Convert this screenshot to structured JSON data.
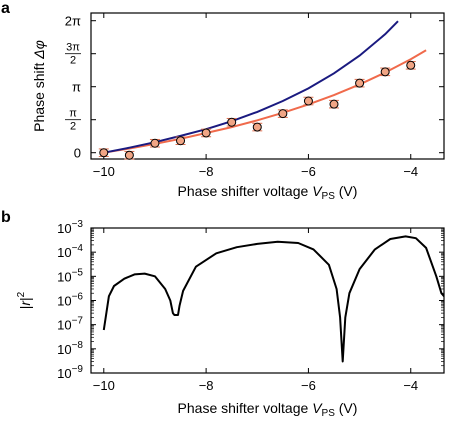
{
  "chart_data": [
    {
      "panel": "a",
      "type": "scatter",
      "xlabel": "Phase shifter voltage V_PS (V)",
      "ylabel": "Phase shift Δφ",
      "xlim": [
        -10.25,
        -3.35
      ],
      "ylim": [
        -0.3,
        6.65
      ],
      "x_ticks": [
        -10,
        -8,
        -6,
        -4
      ],
      "x_tick_labels": [
        "−10",
        "−8",
        "−6",
        "−4"
      ],
      "y_ticks": [
        0,
        1.5708,
        3.1416,
        4.7124,
        6.2832
      ],
      "y_tick_labels": [
        "0",
        "π/2",
        "π",
        "3π/2",
        "2π"
      ],
      "grid": false,
      "series": [
        {
          "kind": "points_with_errorbars",
          "x": [
            -10.0,
            -9.5,
            -9.0,
            -8.5,
            -8.0,
            -7.5,
            -7.0,
            -6.5,
            -6.0,
            -5.5,
            -5.0,
            -4.5,
            -4.0
          ],
          "y": [
            0.0,
            -0.12,
            0.45,
            0.57,
            0.94,
            1.45,
            1.22,
            1.86,
            2.46,
            2.31,
            3.31,
            3.85,
            4.16
          ],
          "yerr": [
            0.18,
            0.18,
            0.18,
            0.18,
            0.18,
            0.18,
            0.18,
            0.18,
            0.18,
            0.18,
            0.18,
            0.18,
            0.18
          ],
          "marker_color": "#f0a585",
          "errorbar_color": "#e07050"
        },
        {
          "kind": "fit_line",
          "color": "#f06a4b",
          "x": [
            -10.0,
            -9.5,
            -9.0,
            -8.5,
            -8.0,
            -7.5,
            -7.0,
            -6.5,
            -6.0,
            -5.5,
            -5.0,
            -4.5,
            -4.0,
            -3.7
          ],
          "y": [
            0.0,
            0.2,
            0.42,
            0.66,
            0.94,
            1.22,
            1.54,
            1.9,
            2.3,
            2.74,
            3.25,
            3.82,
            4.45,
            4.88
          ]
        },
        {
          "kind": "model_line",
          "color": "#1a1a80",
          "x": [
            -10.0,
            -9.5,
            -9.0,
            -8.5,
            -8.0,
            -7.5,
            -7.0,
            -6.5,
            -6.0,
            -5.5,
            -5.0,
            -4.5,
            -4.25
          ],
          "y": [
            0.0,
            0.24,
            0.5,
            0.8,
            1.12,
            1.5,
            1.94,
            2.46,
            3.06,
            3.78,
            4.62,
            5.64,
            6.26
          ]
        }
      ]
    },
    {
      "panel": "b",
      "type": "line",
      "xlabel": "Phase shifter voltage V_PS (V)",
      "ylabel": "|r|²",
      "xlim": [
        -10.25,
        -3.35
      ],
      "ylog": true,
      "ylim": [
        1e-09,
        0.001
      ],
      "x_ticks": [
        -10,
        -8,
        -6,
        -4
      ],
      "x_tick_labels": [
        "−10",
        "−8",
        "−6",
        "−4"
      ],
      "y_ticks": [
        1e-09,
        1e-08,
        1e-07,
        1e-06,
        1e-05,
        0.0001,
        0.001
      ],
      "y_tick_labels": [
        "10⁻⁹",
        "10⁻⁸",
        "10⁻⁷",
        "10⁻⁶",
        "10⁻⁵",
        "10⁻⁴",
        "10⁻³"
      ],
      "grid": false,
      "series": [
        {
          "color": "#000000",
          "x": [
            -10.0,
            -9.9,
            -9.8,
            -9.6,
            -9.4,
            -9.2,
            -9.0,
            -8.8,
            -8.7,
            -8.65,
            -8.62,
            -8.55,
            -8.52,
            -8.45,
            -8.2,
            -7.8,
            -7.4,
            -7.0,
            -6.6,
            -6.2,
            -5.9,
            -5.6,
            -5.45,
            -5.38,
            -5.33,
            -5.28,
            -5.2,
            -5.0,
            -4.7,
            -4.4,
            -4.1,
            -3.9,
            -3.7,
            -3.5,
            -3.4,
            -3.35,
            -3.3,
            -3.25
          ],
          "y": [
            6e-08,
            1.5e-06,
            4e-06,
            8e-06,
            1.2e-05,
            1.3e-05,
            1e-05,
            3e-06,
            1e-06,
            3e-07,
            2.5e-07,
            2.5e-07,
            6e-07,
            2.5e-06,
            2.5e-05,
            9e-05,
            0.00016,
            0.00022,
            0.00027,
            0.00024,
            0.00013,
            3e-05,
            3e-06,
            2e-07,
            3e-09,
            2e-07,
            2e-06,
            2e-05,
            0.00013,
            0.00035,
            0.00045,
            0.00038,
            0.00015,
            1e-05,
            2e-06,
            1.5e-06,
            3e-06,
            1e-05
          ]
        }
      ]
    }
  ]
}
